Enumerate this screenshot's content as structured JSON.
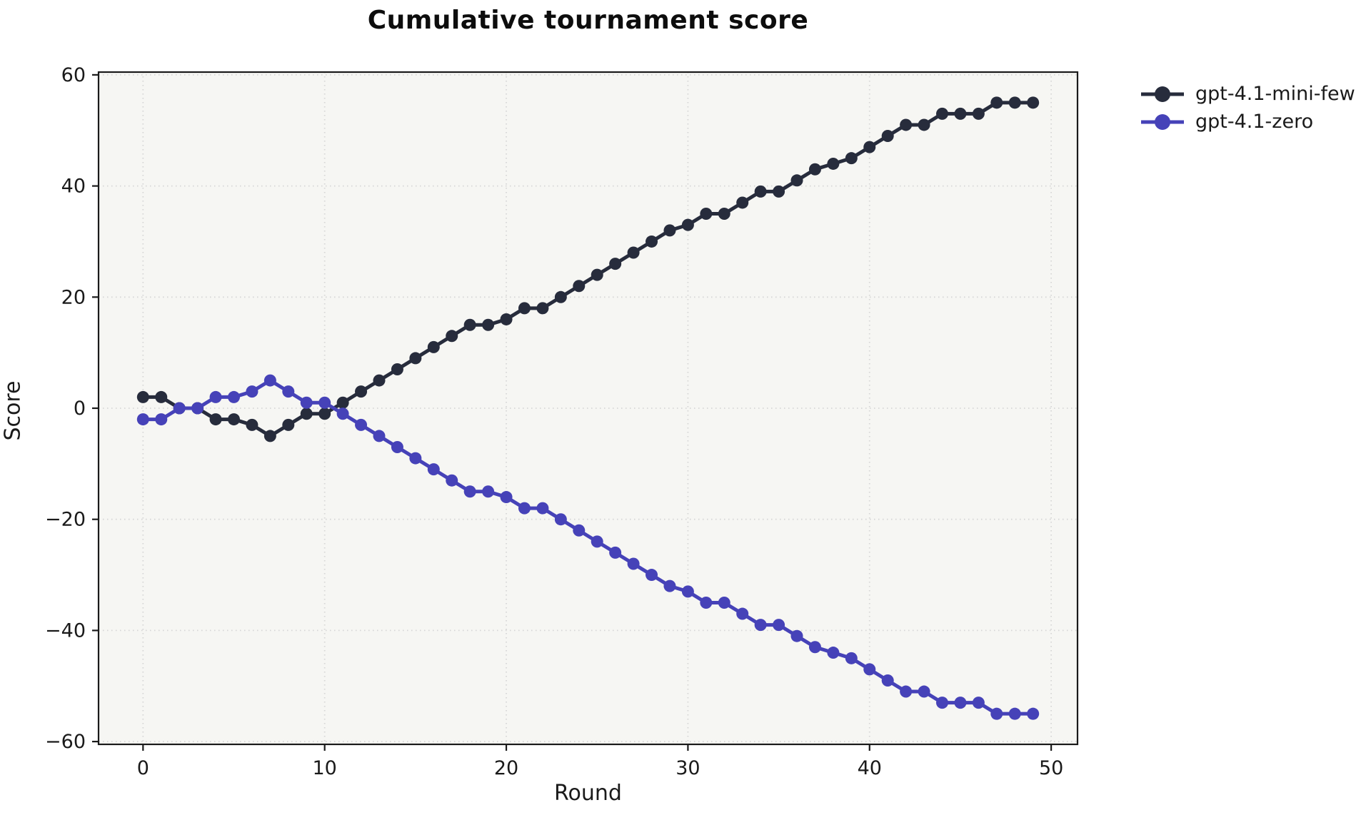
{
  "title": "Cumulative tournament score",
  "chart_data": {
    "type": "line",
    "title": "Cumulative tournament score",
    "xlabel": "Round",
    "ylabel": "Score",
    "x": [
      0,
      1,
      2,
      3,
      4,
      5,
      6,
      7,
      8,
      9,
      10,
      11,
      12,
      13,
      14,
      15,
      16,
      17,
      18,
      19,
      20,
      21,
      22,
      23,
      24,
      25,
      26,
      27,
      28,
      29,
      30,
      31,
      32,
      33,
      34,
      35,
      36,
      37,
      38,
      39,
      40,
      41,
      42,
      43,
      44,
      45,
      46,
      47,
      48,
      49
    ],
    "series": [
      {
        "name": "gpt-4.1-mini-few",
        "color": "#272c3c",
        "values": [
          2,
          2,
          0,
          0,
          -2,
          -2,
          -3,
          -5,
          -3,
          -1,
          -1,
          1,
          3,
          5,
          7,
          9,
          11,
          13,
          15,
          15,
          16,
          18,
          18,
          20,
          22,
          24,
          26,
          28,
          30,
          32,
          33,
          35,
          35,
          37,
          39,
          39,
          41,
          43,
          44,
          45,
          47,
          49,
          51,
          51,
          53,
          53,
          53,
          55,
          55,
          55
        ]
      },
      {
        "name": "gpt-4.1-zero",
        "color": "#4642b8",
        "values": [
          -2,
          -2,
          0,
          0,
          2,
          2,
          3,
          5,
          3,
          1,
          1,
          -1,
          -3,
          -5,
          -7,
          -9,
          -11,
          -13,
          -15,
          -15,
          -16,
          -18,
          -18,
          -20,
          -22,
          -24,
          -26,
          -28,
          -30,
          -32,
          -33,
          -35,
          -35,
          -37,
          -39,
          -39,
          -41,
          -43,
          -44,
          -45,
          -47,
          -49,
          -51,
          -51,
          -53,
          -53,
          -53,
          -55,
          -55,
          -55
        ]
      }
    ],
    "xticks": [
      0,
      10,
      20,
      30,
      40,
      50
    ],
    "yticks": [
      -60,
      -40,
      -20,
      0,
      20,
      40,
      60
    ],
    "xlim": [
      -2.45,
      51.45
    ],
    "ylim": [
      -60.5,
      60.5
    ],
    "grid": "dotted",
    "legend_position": "outside-right-top",
    "plot_bg": "#f6f6f3",
    "fig_bg": "#ffffff",
    "grid_color": "#d6d6d6",
    "axis_color": "#1a1a1a",
    "marker": "circle",
    "marker_radius": 8.5,
    "line_width": 5
  }
}
